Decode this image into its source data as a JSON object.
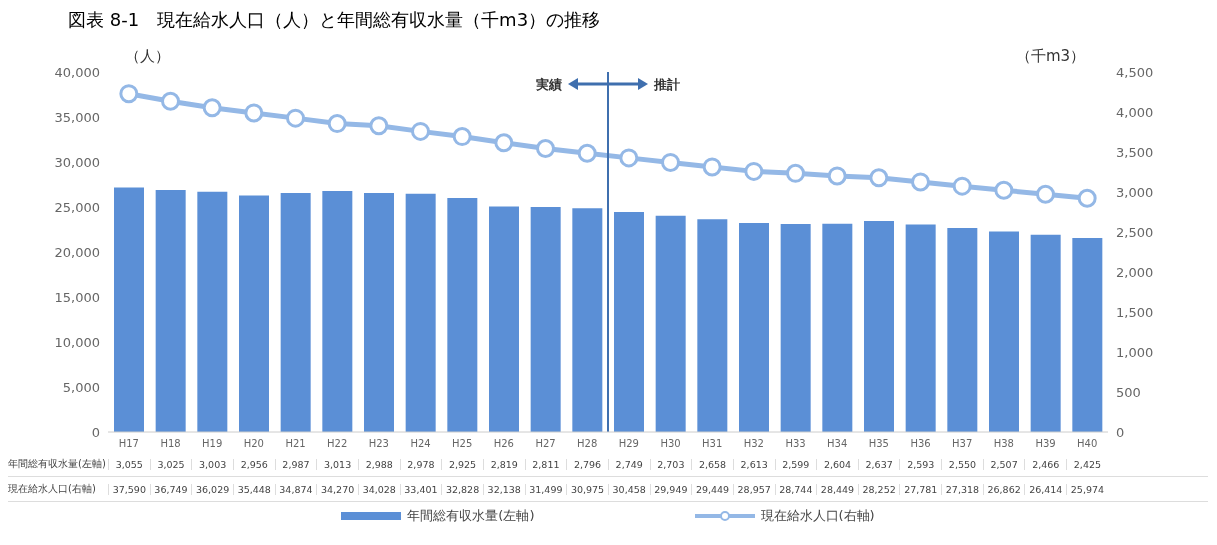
{
  "chart_data": {
    "type": "bar",
    "title": "図表 8-1　現在給水人口（人）と年間総有収水量（千m3）の推移",
    "ylabel": "（人）",
    "y2label": "（千m3）",
    "categories": [
      "H17",
      "H18",
      "H19",
      "H20",
      "H21",
      "H22",
      "H23",
      "H24",
      "H25",
      "H26",
      "H27",
      "H28",
      "H29",
      "H30",
      "H31",
      "H32",
      "H33",
      "H34",
      "H35",
      "H36",
      "H37",
      "H38",
      "H39",
      "H40"
    ],
    "series": [
      {
        "name": "年間総有収水量(左軸)",
        "axis": "y2",
        "color": "#5b8fd6",
        "values": [
          3055,
          3025,
          3003,
          2956,
          2987,
          3013,
          2988,
          2978,
          2925,
          2819,
          2811,
          2796,
          2749,
          2703,
          2658,
          2613,
          2599,
          2604,
          2637,
          2593,
          2550,
          2507,
          2466,
          2425
        ],
        "value_labels": [
          "3,055",
          "3,025",
          "3,003",
          "2,956",
          "2,987",
          "3,013",
          "2,988",
          "2,978",
          "2,925",
          "2,819",
          "2,811",
          "2,796",
          "2,749",
          "2,703",
          "2,658",
          "2,613",
          "2,599",
          "2,604",
          "2,637",
          "2,593",
          "2,550",
          "2,507",
          "2,466",
          "2,425"
        ]
      },
      {
        "name": "現在給水人口(右軸)",
        "type": "line",
        "axis": "y",
        "color": "#94b8e6",
        "values": [
          37590,
          36749,
          36029,
          35448,
          34874,
          34270,
          34028,
          33401,
          32828,
          32138,
          31499,
          30975,
          30458,
          29949,
          29449,
          28957,
          28744,
          28449,
          28252,
          27781,
          27318,
          26862,
          26414,
          25974
        ],
        "value_labels": [
          "37,590",
          "36,749",
          "36,029",
          "35,448",
          "34,874",
          "34,270",
          "34,028",
          "33,401",
          "32,828",
          "32,138",
          "31,499",
          "30,975",
          "30,458",
          "29,949",
          "29,449",
          "28,957",
          "28,744",
          "28,449",
          "28,252",
          "27,781",
          "27,318",
          "26,862",
          "26,414",
          "25,974"
        ]
      }
    ],
    "ylim": [
      0,
      40000
    ],
    "yticks": [
      0,
      {
        "value": 5000,
        "label": "5,000"
      },
      {
        "value": 10000,
        "label": "10,000"
      },
      {
        "value": 15000,
        "label": "15,000"
      },
      {
        "value": 20000,
        "label": "20,000"
      },
      {
        "value": 25000,
        "label": "25,000"
      },
      {
        "value": 30000,
        "label": "30,000"
      },
      {
        "value": 35000,
        "label": "35,000"
      },
      {
        "value": 40000,
        "label": "40,000"
      }
    ],
    "y2lim": [
      0,
      4500
    ],
    "y2ticks": [
      0,
      500,
      {
        "value": 1000,
        "label": "1,000"
      },
      {
        "value": 1500,
        "label": "1,500"
      },
      {
        "value": 2000,
        "label": "2,000"
      },
      {
        "value": 2500,
        "label": "2,500"
      },
      {
        "value": 3000,
        "label": "3,000"
      },
      {
        "value": 3500,
        "label": "3,500"
      },
      {
        "value": 4000,
        "label": "4,000"
      },
      {
        "value": 4500,
        "label": "4,500"
      }
    ],
    "ref_lines": [
      {
        "axis": "x",
        "value": "H29",
        "color": "#3f6fae"
      }
    ],
    "annotations": [
      "実績",
      "推計"
    ],
    "marker": "circle",
    "legend": "bottom"
  }
}
